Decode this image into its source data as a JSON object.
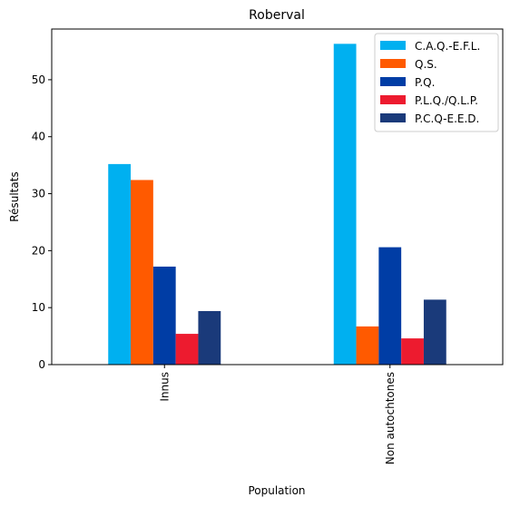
{
  "chart_data": {
    "type": "bar",
    "title": "Roberval",
    "xlabel": "Population",
    "ylabel": "Résultats",
    "categories": [
      "Innus",
      "Non autochtones"
    ],
    "ylim": [
      0,
      58.9
    ],
    "yticks": [
      0,
      10,
      20,
      30,
      40,
      50
    ],
    "grid": false,
    "legend_position": "top-right",
    "series": [
      {
        "name": "C.A.Q.-E.F.L.",
        "color": "#00b0f0",
        "values": [
          35.2,
          56.3
        ]
      },
      {
        "name": "Q.S.",
        "color": "#ff5a00",
        "values": [
          32.4,
          6.7
        ]
      },
      {
        "name": "P.Q.",
        "color": "#003da5",
        "values": [
          17.2,
          20.6
        ]
      },
      {
        "name": "P.L.Q./Q.L.P.",
        "color": "#ed1b2f",
        "values": [
          5.4,
          4.6
        ]
      },
      {
        "name": "P.C.Q-E.E.D.",
        "color": "#1a3a7a",
        "values": [
          9.4,
          11.4
        ]
      }
    ]
  }
}
